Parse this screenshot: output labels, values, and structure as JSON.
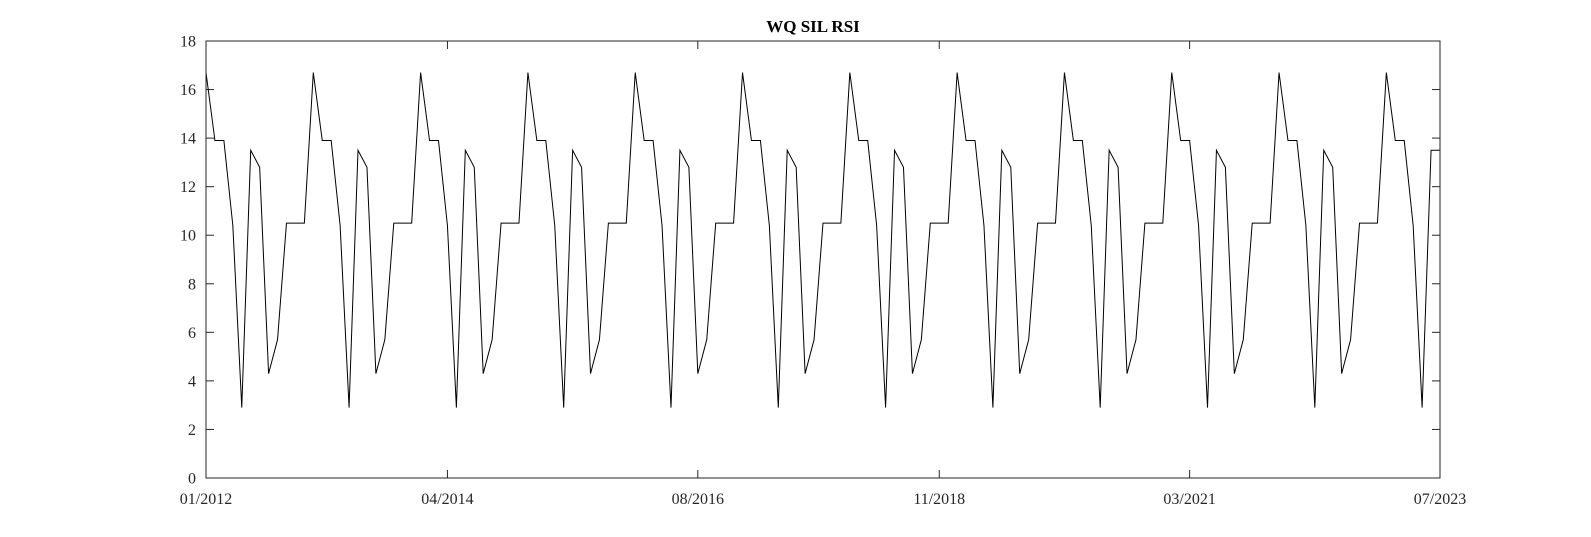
{
  "chart_data": {
    "type": "line",
    "title": "WQ SIL RSI",
    "xlabel": "",
    "ylabel": "",
    "x_range": [
      "2012-01",
      "2023-07"
    ],
    "ylim": [
      0,
      18
    ],
    "grid": false,
    "legend": "none",
    "x_ticks": [
      "01/2012",
      "04/2014",
      "08/2016",
      "11/2018",
      "03/2021",
      "07/2023"
    ],
    "y_ticks": [
      0,
      2,
      4,
      6,
      8,
      10,
      12,
      14,
      16,
      18
    ],
    "line_color": "#000000",
    "series": [
      {
        "x": [
          "2012-01",
          "2012-02",
          "2012-03",
          "2012-04",
          "2012-05",
          "2012-06",
          "2012-07",
          "2012-08",
          "2012-09",
          "2012-10",
          "2012-11",
          "2012-12",
          "2013-01",
          "2013-02",
          "2013-03",
          "2013-04",
          "2013-05",
          "2013-06",
          "2013-07",
          "2013-08",
          "2013-09",
          "2013-10",
          "2013-11",
          "2013-12",
          "2014-01",
          "2014-02",
          "2014-03",
          "2014-04",
          "2014-05",
          "2014-06",
          "2014-07",
          "2014-08",
          "2014-09",
          "2014-10",
          "2014-11",
          "2014-12",
          "2015-01",
          "2015-02",
          "2015-03",
          "2015-04",
          "2015-05",
          "2015-06",
          "2015-07",
          "2015-08",
          "2015-09",
          "2015-10",
          "2015-11",
          "2015-12",
          "2016-01",
          "2016-02",
          "2016-03",
          "2016-04",
          "2016-05",
          "2016-06",
          "2016-07",
          "2016-08",
          "2016-09",
          "2016-10",
          "2016-11",
          "2016-12",
          "2017-01",
          "2017-02",
          "2017-03",
          "2017-04",
          "2017-05",
          "2017-06",
          "2017-07",
          "2017-08",
          "2017-09",
          "2017-10",
          "2017-11",
          "2017-12",
          "2018-01",
          "2018-02",
          "2018-03",
          "2018-04",
          "2018-05",
          "2018-06",
          "2018-07",
          "2018-08",
          "2018-09",
          "2018-10",
          "2018-11",
          "2018-12",
          "2019-01",
          "2019-02",
          "2019-03",
          "2019-04",
          "2019-05",
          "2019-06",
          "2019-07",
          "2019-08",
          "2019-09",
          "2019-10",
          "2019-11",
          "2019-12",
          "2020-01",
          "2020-02",
          "2020-03",
          "2020-04",
          "2020-05",
          "2020-06",
          "2020-07",
          "2020-08",
          "2020-09",
          "2020-10",
          "2020-11",
          "2020-12",
          "2021-01",
          "2021-02",
          "2021-03",
          "2021-04",
          "2021-05",
          "2021-06",
          "2021-07",
          "2021-08",
          "2021-09",
          "2021-10",
          "2021-11",
          "2021-12",
          "2022-01",
          "2022-02",
          "2022-03",
          "2022-04",
          "2022-05",
          "2022-06",
          "2022-07",
          "2022-08",
          "2022-09",
          "2022-10",
          "2022-11",
          "2022-12",
          "2023-01",
          "2023-02",
          "2023-03",
          "2023-04",
          "2023-05",
          "2023-06",
          "2023-07"
        ],
        "y": [
          16.7,
          13.9,
          13.9,
          10.4,
          2.9,
          13.5,
          12.8,
          4.3,
          5.7,
          10.5,
          10.5,
          10.5,
          16.7,
          13.9,
          13.9,
          10.4,
          2.9,
          13.5,
          12.8,
          4.3,
          5.7,
          10.5,
          10.5,
          10.5,
          16.7,
          13.9,
          13.9,
          10.4,
          2.9,
          13.5,
          12.8,
          4.3,
          5.7,
          10.5,
          10.5,
          10.5,
          16.7,
          13.9,
          13.9,
          10.4,
          2.9,
          13.5,
          12.8,
          4.3,
          5.7,
          10.5,
          10.5,
          10.5,
          16.7,
          13.9,
          13.9,
          10.4,
          2.9,
          13.5,
          12.8,
          4.3,
          5.7,
          10.5,
          10.5,
          10.5,
          16.7,
          13.9,
          13.9,
          10.4,
          2.9,
          13.5,
          12.8,
          4.3,
          5.7,
          10.5,
          10.5,
          10.5,
          16.7,
          13.9,
          13.9,
          10.4,
          2.9,
          13.5,
          12.8,
          4.3,
          5.7,
          10.5,
          10.5,
          10.5,
          16.7,
          13.9,
          13.9,
          10.4,
          2.9,
          13.5,
          12.8,
          4.3,
          5.7,
          10.5,
          10.5,
          10.5,
          16.7,
          13.9,
          13.9,
          10.4,
          2.9,
          13.5,
          12.8,
          4.3,
          5.7,
          10.5,
          10.5,
          10.5,
          16.7,
          13.9,
          13.9,
          10.4,
          2.9,
          13.5,
          12.8,
          4.3,
          5.7,
          10.5,
          10.5,
          10.5,
          16.7,
          13.9,
          13.9,
          10.4,
          2.9,
          13.5,
          12.8,
          4.3,
          5.7,
          10.5,
          10.5,
          10.5,
          16.7,
          13.9,
          13.9,
          10.4,
          2.9,
          13.5,
          13.5
        ]
      }
    ]
  }
}
